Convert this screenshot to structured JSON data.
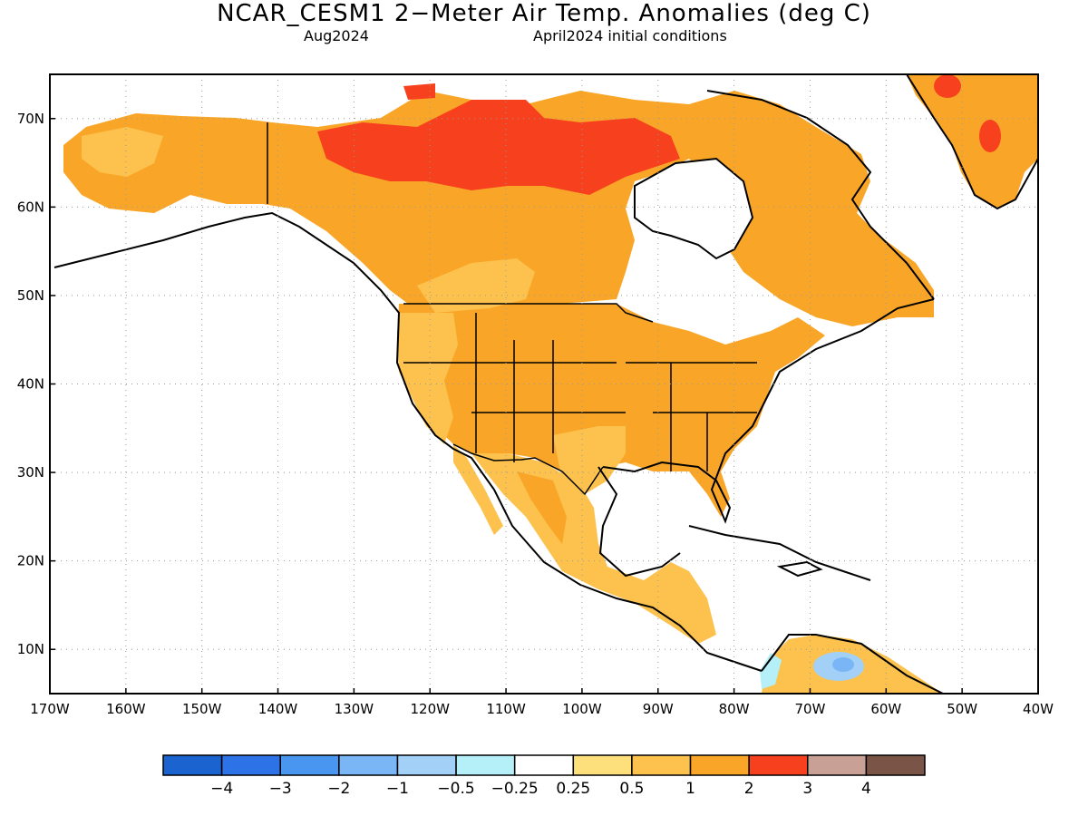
{
  "title": "NCAR_CESM1 2−Meter Air Temp. Anomalies (deg C)",
  "subtitle_left": "Aug2024",
  "subtitle_right": "April2024 initial conditions",
  "map": {
    "lon_range": [
      -170,
      -40
    ],
    "lat_range": [
      5,
      75
    ],
    "lon_ticks": [
      "170W",
      "160W",
      "150W",
      "140W",
      "130W",
      "120W",
      "110W",
      "100W",
      "90W",
      "80W",
      "70W",
      "60W",
      "50W",
      "40W"
    ],
    "lat_ticks": [
      "10N",
      "20N",
      "30N",
      "40N",
      "50N",
      "60N",
      "70N"
    ],
    "grid": true,
    "anomaly_regions": [
      {
        "label": "Northern Canada / Arctic islands",
        "category": "2 to 3"
      },
      {
        "label": "Alaska and most of Canada",
        "category": "1 to 2"
      },
      {
        "label": "Contiguous United States",
        "category": "1 to 2"
      },
      {
        "label": "Pacific Northwest / Southwest US",
        "category": "0.5 to 1"
      },
      {
        "label": "Mexico",
        "category": "0.5 to 1"
      },
      {
        "label": "Greenland",
        "category": "1 to 2"
      },
      {
        "label": "Northern South America",
        "category": "-1 to -0.5"
      }
    ]
  },
  "colorbar": {
    "colors": [
      "#1b63cf",
      "#2d72e6",
      "#4896f0",
      "#7ab6f5",
      "#a3d0f7",
      "#b5f0f8",
      "#ffffff",
      "#fde07c",
      "#fcc24d",
      "#f9a628",
      "#f7411e",
      "#c8a096",
      "#7a5446"
    ],
    "labels": [
      "−4",
      "−3",
      "−2",
      "−1",
      "−0.5",
      "−0.25",
      "0.25",
      "0.5",
      "1",
      "2",
      "3",
      "4"
    ]
  }
}
